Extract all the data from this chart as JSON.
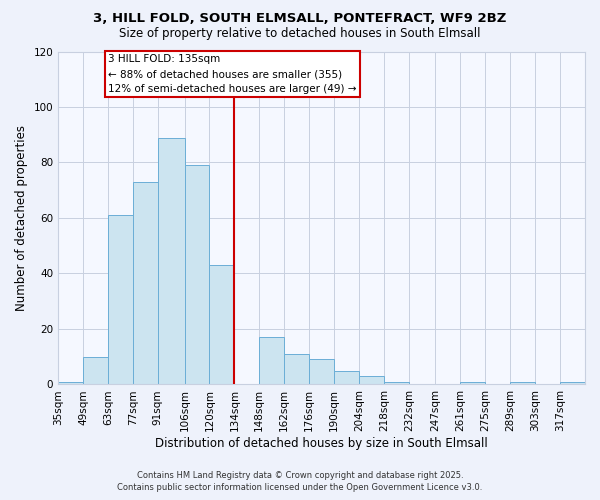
{
  "title": "3, HILL FOLD, SOUTH ELMSALL, PONTEFRACT, WF9 2BZ",
  "subtitle": "Size of property relative to detached houses in South Elmsall",
  "xlabel": "Distribution of detached houses by size in South Elmsall",
  "ylabel": "Number of detached properties",
  "bin_labels": [
    "35sqm",
    "49sqm",
    "63sqm",
    "77sqm",
    "91sqm",
    "106sqm",
    "120sqm",
    "134sqm",
    "148sqm",
    "162sqm",
    "176sqm",
    "190sqm",
    "204sqm",
    "218sqm",
    "232sqm",
    "247sqm",
    "261sqm",
    "275sqm",
    "289sqm",
    "303sqm",
    "317sqm"
  ],
  "bin_edges": [
    35,
    49,
    63,
    77,
    91,
    106,
    120,
    134,
    148,
    162,
    176,
    190,
    204,
    218,
    232,
    247,
    261,
    275,
    289,
    303,
    317,
    331
  ],
  "bar_values": [
    1,
    10,
    61,
    73,
    89,
    79,
    43,
    0,
    17,
    11,
    9,
    5,
    3,
    1,
    0,
    0,
    1,
    0,
    1,
    0,
    1
  ],
  "bar_color": "#cce4f0",
  "bar_edgecolor": "#6baed6",
  "vline_x": 134,
  "vline_color": "#cc0000",
  "ylim": [
    0,
    120
  ],
  "yticks": [
    0,
    20,
    40,
    60,
    80,
    100,
    120
  ],
  "annotation_title": "3 HILL FOLD: 135sqm",
  "annotation_line1": "← 88% of detached houses are smaller (355)",
  "annotation_line2": "12% of semi-detached houses are larger (49) →",
  "footer_line1": "Contains HM Land Registry data © Crown copyright and database right 2025.",
  "footer_line2": "Contains public sector information licensed under the Open Government Licence v3.0.",
  "bg_color": "#eef2fb",
  "plot_bg_color": "#f5f8ff",
  "grid_color": "#c8d0e0"
}
